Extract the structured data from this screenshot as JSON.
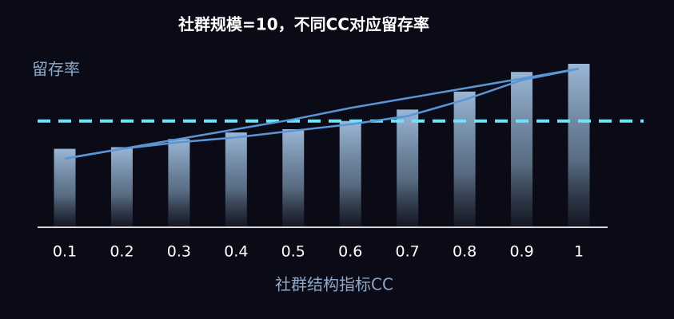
{
  "chart_data": {
    "type": "bar",
    "title": "社群规模=10，不同CC对应留存率",
    "y_label": "留存率",
    "x_label": "社群结构指标CC",
    "categories": [
      "0.1",
      "0.2",
      "0.3",
      "0.4",
      "0.5",
      "0.6",
      "0.7",
      "0.8",
      "0.9",
      "1"
    ],
    "values": [
      48,
      49,
      54,
      58,
      60,
      65,
      72,
      83,
      95,
      100
    ],
    "color": "#9bb7d6",
    "lines": [
      {
        "color": "#5b95d6",
        "values": [
          42,
          48,
          52,
          55,
          59,
          63,
          68,
          78,
          90,
          97
        ]
      },
      {
        "color": "#5b95d6",
        "values": [
          42,
          48,
          54,
          60,
          66,
          73,
          79,
          85,
          91,
          97
        ]
      }
    ],
    "reference_line": {
      "value": 65,
      "color": "#6fe3f5"
    },
    "ylim": [
      0,
      100
    ]
  }
}
